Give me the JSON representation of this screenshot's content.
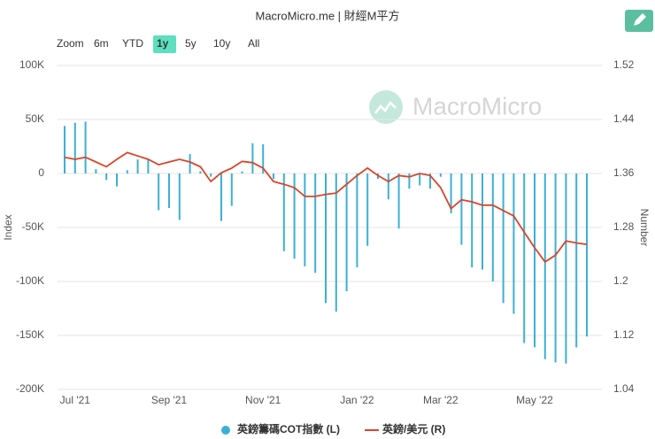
{
  "header": {
    "title": "MacroMicro.me | 財經M平方"
  },
  "range_selector": {
    "label": "Zoom",
    "buttons": [
      "6m",
      "YTD",
      "1y",
      "5y",
      "10y",
      "All"
    ],
    "selected": "1y"
  },
  "watermark": "MacroMicro",
  "chart_data": {
    "type": "combo",
    "ylabel": "Index",
    "y2label": "Number",
    "categories": [
      null,
      "Jul '21",
      null,
      null,
      null,
      null,
      null,
      null,
      null,
      null,
      "Sep '21",
      null,
      null,
      null,
      null,
      null,
      null,
      null,
      null,
      "Nov '21",
      null,
      null,
      null,
      null,
      null,
      null,
      null,
      null,
      "Jan '22",
      null,
      null,
      null,
      null,
      null,
      null,
      null,
      "Mar '22",
      null,
      null,
      null,
      null,
      null,
      null,
      null,
      null,
      "May '22",
      null,
      null,
      null,
      null,
      null
    ],
    "series": [
      {
        "name": "英鎊籌碼COT指數 (L)",
        "type": "bar",
        "color": "#3cb0d4",
        "values": [
          44000,
          47000,
          48000,
          4000,
          -6000,
          -12000,
          3000,
          13000,
          13000,
          -34000,
          -32000,
          -43000,
          18000,
          2000,
          -3000,
          -44000,
          -30000,
          2000,
          28000,
          27000,
          -5000,
          -72000,
          -79000,
          -86000,
          -92000,
          -120000,
          -128000,
          -109000,
          -87000,
          -67000,
          -5000,
          -24000,
          -51000,
          -14000,
          -11000,
          -14000,
          -3000,
          -37000,
          -66000,
          -87000,
          -89000,
          -100000,
          -120000,
          -130000,
          -157000,
          -161000,
          -172000,
          -175000,
          -176000,
          -161000,
          -151000
        ]
      },
      {
        "name": "英鎊/美元 (R)",
        "type": "line",
        "axis": "y2",
        "color": "#d9452a",
        "values": [
          1.384,
          1.381,
          1.384,
          1.377,
          1.37,
          1.381,
          1.391,
          1.386,
          1.381,
          1.373,
          1.377,
          1.381,
          1.377,
          1.37,
          1.348,
          1.361,
          1.368,
          1.378,
          1.376,
          1.368,
          1.348,
          1.344,
          1.339,
          1.326,
          1.326,
          1.329,
          1.331,
          1.344,
          1.357,
          1.368,
          1.357,
          1.348,
          1.357,
          1.355,
          1.36,
          1.357,
          1.339,
          1.308,
          1.321,
          1.318,
          1.313,
          1.313,
          1.305,
          1.297,
          1.273,
          1.25,
          1.229,
          1.239,
          1.26,
          1.257,
          1.255
        ]
      }
    ],
    "ylim": [
      -200000,
      100000
    ],
    "yticks": [
      {
        "value": -200000,
        "label": "-200K"
      },
      {
        "value": -150000,
        "label": "-150K"
      },
      {
        "value": -100000,
        "label": "-100K"
      },
      {
        "value": -50000,
        "label": "-50K"
      },
      0,
      {
        "value": 50000,
        "label": "50K"
      },
      {
        "value": 100000,
        "label": "100K"
      }
    ],
    "y2lim": [
      1.04,
      1.52
    ],
    "y2ticks": [
      1.04,
      1.12,
      1.2,
      1.28,
      1.36,
      1.44,
      1.52
    ],
    "grid": true,
    "legend": "bottom"
  }
}
